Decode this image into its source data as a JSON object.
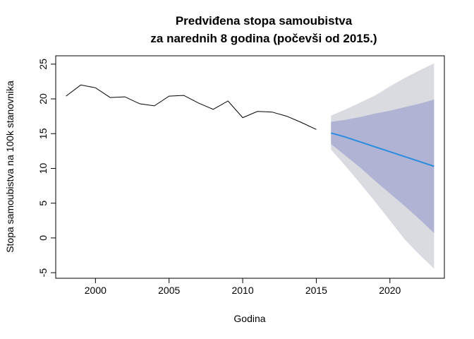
{
  "chart_data": {
    "type": "line",
    "title_line1": "Predviđena stopa samoubistva",
    "title_line2": "za narednih 8 godina (počevši od 2015.)",
    "xlabel": "Godina",
    "ylabel": "Stopa samoubistva na 100k stanovnika",
    "xlim": [
      1997.3,
      2023.7
    ],
    "ylim": [
      -5.8,
      26.2
    ],
    "x_ticks": [
      "2000",
      "2005",
      "2010",
      "2015",
      "2020"
    ],
    "y_ticks": [
      "-5",
      "0",
      "5",
      "10",
      "15",
      "20",
      "25"
    ],
    "grid": false,
    "legend": "none",
    "history": {
      "x": [
        1998,
        1999,
        2000,
        2001,
        2002,
        2003,
        2004,
        2005,
        2006,
        2007,
        2008,
        2009,
        2010,
        2011,
        2012,
        2013,
        2014,
        2015
      ],
      "y": [
        20.4,
        22.0,
        21.6,
        20.2,
        20.3,
        19.3,
        19.0,
        20.4,
        20.5,
        19.4,
        18.5,
        19.7,
        17.3,
        18.2,
        18.1,
        17.5,
        16.6,
        15.6
      ]
    },
    "forecast": {
      "x": [
        2016,
        2017,
        2018,
        2019,
        2020,
        2021,
        2022,
        2023
      ],
      "mean": [
        15.1,
        14.5,
        13.8,
        13.1,
        12.4,
        11.7,
        11.0,
        10.3
      ],
      "lo80": [
        13.5,
        11.8,
        10.1,
        8.2,
        6.4,
        4.6,
        2.7,
        0.7
      ],
      "hi80": [
        16.7,
        17.0,
        17.4,
        17.9,
        18.3,
        18.8,
        19.3,
        19.9
      ],
      "lo95": [
        12.7,
        10.3,
        7.8,
        5.2,
        2.5,
        -0.2,
        -2.4,
        -4.4
      ],
      "hi95": [
        17.6,
        18.5,
        19.5,
        20.5,
        21.8,
        23.0,
        24.1,
        25.1
      ]
    },
    "colors": {
      "history_line": "#000000",
      "forecast_line": "#2b8ce0",
      "band_80": "#b0b3d3",
      "band_95": "#dadbe1"
    }
  }
}
